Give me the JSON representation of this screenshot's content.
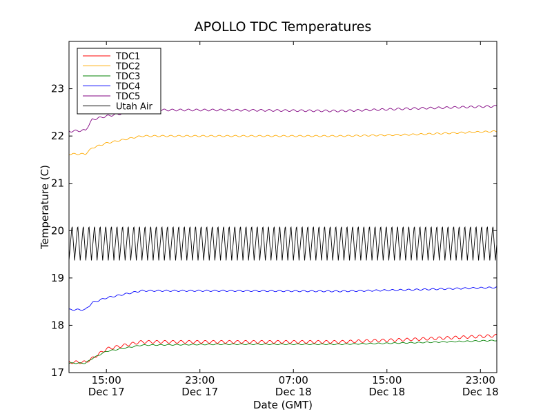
{
  "chart_data": {
    "type": "line",
    "title": "APOLLO TDC Temperatures",
    "xlabel": "Date (GMT)",
    "ylabel": "Temperature (C)",
    "xlim_hours": [
      -3.2,
      33.4
    ],
    "ylim": [
      17,
      24
    ],
    "x_ticks": [
      {
        "value": 0,
        "label1": "15:00",
        "label2": "Dec 17"
      },
      {
        "value": 8,
        "label1": "23:00",
        "label2": "Dec 17"
      },
      {
        "value": 16,
        "label1": "07:00",
        "label2": "Dec 18"
      },
      {
        "value": 24,
        "label1": "15:00",
        "label2": "Dec 18"
      },
      {
        "value": 32,
        "label1": "23:00",
        "label2": "Dec 18"
      }
    ],
    "y_ticks": [
      17,
      18,
      19,
      20,
      21,
      22,
      23
    ],
    "legend_position": "top-left",
    "series": [
      {
        "name": "TDC1",
        "color": "#ff0000",
        "base_points": [
          [
            -3.2,
            17.22
          ],
          [
            -1.8,
            17.22
          ],
          [
            -1.2,
            17.3
          ],
          [
            0,
            17.5
          ],
          [
            3,
            17.65
          ],
          [
            10,
            17.65
          ],
          [
            20,
            17.65
          ],
          [
            26,
            17.7
          ],
          [
            33.4,
            17.78
          ]
        ],
        "oscillation": 0.03
      },
      {
        "name": "TDC2",
        "color": "#ffaa00",
        "base_points": [
          [
            -3.2,
            21.62
          ],
          [
            -1.8,
            21.62
          ],
          [
            -1.2,
            21.75
          ],
          [
            0,
            21.85
          ],
          [
            3,
            22.0
          ],
          [
            10,
            22.0
          ],
          [
            20,
            22.0
          ],
          [
            26,
            22.03
          ],
          [
            33.4,
            22.1
          ]
        ],
        "oscillation": 0.015
      },
      {
        "name": "TDC3",
        "color": "#008000",
        "base_points": [
          [
            -3.2,
            17.2
          ],
          [
            -1.8,
            17.2
          ],
          [
            -1.2,
            17.3
          ],
          [
            0,
            17.45
          ],
          [
            3,
            17.58
          ],
          [
            10,
            17.6
          ],
          [
            20,
            17.6
          ],
          [
            26,
            17.63
          ],
          [
            33.4,
            17.68
          ]
        ],
        "oscillation": 0.01
      },
      {
        "name": "TDC4",
        "color": "#0000ff",
        "base_points": [
          [
            -3.2,
            18.33
          ],
          [
            -1.8,
            18.33
          ],
          [
            -1.2,
            18.48
          ],
          [
            0,
            18.58
          ],
          [
            3,
            18.73
          ],
          [
            10,
            18.73
          ],
          [
            20,
            18.72
          ],
          [
            26,
            18.75
          ],
          [
            33.4,
            18.8
          ]
        ],
        "oscillation": 0.015
      },
      {
        "name": "TDC5",
        "color": "#800080",
        "base_points": [
          [
            -3.2,
            22.1
          ],
          [
            -1.8,
            22.12
          ],
          [
            -1.2,
            22.35
          ],
          [
            0,
            22.42
          ],
          [
            3,
            22.55
          ],
          [
            10,
            22.55
          ],
          [
            20,
            22.53
          ],
          [
            26,
            22.58
          ],
          [
            33.4,
            22.63
          ]
        ],
        "oscillation": 0.02
      },
      {
        "name": "Utah Air",
        "color": "#000000",
        "base_points": [
          [
            -3.2,
            19.75
          ],
          [
            33.4,
            19.75
          ]
        ],
        "oscillation": 0.38,
        "period_hours": 0.48
      }
    ]
  }
}
